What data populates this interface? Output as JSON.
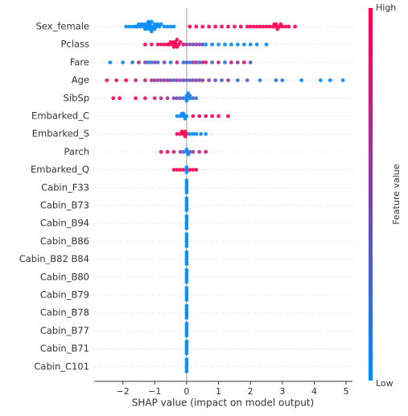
{
  "chart_data": {
    "type": "beeswarm",
    "xlabel": "SHAP value (impact on model output)",
    "xlim": [
      -2.9,
      5.2
    ],
    "xticks": [
      {
        "value": -2,
        "label": "−2"
      },
      {
        "value": -1,
        "label": "−1"
      },
      0,
      1,
      2,
      3,
      4,
      5
    ],
    "colorbar": {
      "label": "Feature value",
      "high": "High",
      "low": "Low",
      "colors": [
        "#008afb",
        "#ff0052"
      ]
    },
    "series": [
      {
        "name": "Sex_female",
        "values": [
          -1.9,
          -1.8,
          -1.7,
          -1.6,
          -1.55,
          -1.5,
          -1.45,
          -1.4,
          -1.35,
          -1.3,
          -1.3,
          -1.25,
          -1.2,
          -1.2,
          -1.2,
          -1.15,
          -1.15,
          -1.1,
          -1.1,
          -1.1,
          -1.05,
          -1.0,
          -1.0,
          -0.95,
          -0.9,
          -0.85,
          -0.8,
          -0.7,
          -0.6,
          -0.5,
          -0.4,
          0.1,
          0.3,
          0.5,
          0.7,
          0.9,
          1.1,
          1.3,
          1.5,
          1.7,
          1.9,
          2.0,
          2.1,
          2.2,
          2.3,
          2.4,
          2.5,
          2.6,
          2.7,
          2.75,
          2.8,
          2.8,
          2.85,
          2.9,
          2.95,
          3.0,
          3.1,
          3.2,
          3.4
        ],
        "feature_values": [
          0,
          0,
          0,
          0,
          0,
          0,
          0,
          0,
          0,
          0,
          0,
          0,
          0,
          0,
          0,
          0,
          0,
          0,
          0,
          0,
          0,
          0,
          0,
          0,
          0,
          0,
          0,
          0,
          0,
          0,
          0,
          1,
          1,
          1,
          1,
          1,
          1,
          1,
          1,
          1,
          1,
          1,
          1,
          1,
          1,
          1,
          1,
          1,
          1,
          1,
          1,
          1,
          1,
          1,
          1,
          1,
          1,
          1,
          1
        ]
      },
      {
        "name": "Pclass",
        "values": [
          -1.3,
          -1.1,
          -0.9,
          -0.8,
          -0.7,
          -0.6,
          -0.55,
          -0.5,
          -0.45,
          -0.4,
          -0.4,
          -0.35,
          -0.35,
          -0.3,
          -0.3,
          -0.25,
          -0.2,
          -0.1,
          0.0,
          0.1,
          0.2,
          0.3,
          0.4,
          0.5,
          0.6,
          0.8,
          1.0,
          1.2,
          1.4,
          1.6,
          1.8,
          2.0,
          2.2,
          2.5
        ],
        "feature_values": [
          1,
          1,
          1,
          1,
          1,
          1,
          1,
          1,
          1,
          1,
          1,
          1,
          1,
          1,
          1,
          1,
          1,
          1,
          0.5,
          0.5,
          0.5,
          0.5,
          0.5,
          0.5,
          0,
          0,
          0,
          0,
          0,
          0,
          0,
          0,
          0,
          0
        ]
      },
      {
        "name": "Fare",
        "values": [
          -2.4,
          -2.0,
          -1.7,
          -1.5,
          -1.3,
          -1.2,
          -1.1,
          -1.0,
          -0.9,
          -0.7,
          -0.5,
          -0.3,
          -0.1,
          0.0,
          0.1,
          0.2,
          0.3,
          0.4,
          0.5,
          0.6,
          0.8,
          1.0,
          1.2,
          1.4,
          1.6,
          1.8,
          2.0
        ],
        "feature_values": [
          0,
          0.1,
          0.2,
          0.7,
          0.5,
          0.3,
          0.1,
          0.6,
          0.2,
          0.4,
          0.1,
          0.8,
          0.2,
          0.3,
          0.1,
          0.5,
          0.7,
          0.2,
          0.6,
          0.9,
          0.3,
          0.7,
          0.2,
          0.8,
          0.6,
          0.9,
          0.4
        ]
      },
      {
        "name": "Age",
        "values": [
          -2.5,
          -2.2,
          -1.9,
          -1.6,
          -1.3,
          -1.1,
          -1.0,
          -0.9,
          -0.8,
          -0.7,
          -0.6,
          -0.5,
          -0.4,
          -0.3,
          -0.2,
          -0.1,
          0,
          0.1,
          0.2,
          0.3,
          0.4,
          0.5,
          0.7,
          0.9,
          1.1,
          1.3,
          1.6,
          1.9,
          2.3,
          2.8,
          3.0,
          3.6,
          4.2,
          4.5,
          4.9
        ],
        "feature_values": [
          0.9,
          0.8,
          1,
          0.7,
          0.8,
          0.6,
          0.7,
          0.5,
          0.6,
          0.4,
          0.7,
          0.5,
          0.3,
          0.6,
          0.4,
          0.5,
          0.3,
          0.4,
          0.5,
          0.6,
          0.3,
          0.7,
          0.5,
          0.4,
          0.3,
          0.6,
          0.2,
          0.3,
          0.1,
          0.2,
          0.1,
          0.05,
          0,
          0.05,
          0
        ]
      },
      {
        "name": "SibSp",
        "values": [
          -2.3,
          -2.1,
          -1.6,
          -1.3,
          -1.0,
          -0.8,
          -0.6,
          -0.4,
          -0.3,
          -0.2,
          -0.1,
          0,
          0,
          0,
          0.05,
          0.1,
          0.1,
          0.2,
          0.3
        ],
        "feature_values": [
          1,
          1,
          1,
          0.9,
          0.8,
          0.7,
          0.6,
          0.5,
          0.4,
          0.4,
          0.3,
          0,
          0,
          0,
          0,
          0,
          0.2,
          0.3,
          0.2
        ]
      },
      {
        "name": "Embarked_C",
        "values": [
          -0.3,
          -0.2,
          -0.15,
          -0.1,
          -0.1,
          -0.05,
          0,
          0.2,
          0.4,
          0.6,
          0.8,
          1.0,
          1.3
        ],
        "feature_values": [
          0,
          0,
          0,
          0,
          0,
          0,
          0,
          1,
          1,
          1,
          1,
          1,
          1
        ]
      },
      {
        "name": "Embarked_S",
        "values": [
          -0.3,
          -0.2,
          -0.15,
          -0.1,
          -0.05,
          -0.05,
          0,
          0.1,
          0.2,
          0.3,
          0.45,
          0.6
        ],
        "feature_values": [
          1,
          1,
          1,
          1,
          1,
          1,
          1,
          0,
          0,
          0,
          0,
          0
        ]
      },
      {
        "name": "Parch",
        "values": [
          -0.8,
          -0.6,
          -0.4,
          -0.2,
          -0.1,
          0,
          0,
          0.05,
          0.1,
          0.2,
          0.4,
          0.6
        ],
        "feature_values": [
          1,
          1,
          0.8,
          0.5,
          0.3,
          0,
          0,
          0,
          0.3,
          0.6,
          0.7,
          0.8
        ]
      },
      {
        "name": "Embarked_Q",
        "values": [
          -0.4,
          -0.3,
          -0.2,
          -0.1,
          0,
          0,
          0,
          0.1,
          0.2,
          0.3
        ],
        "feature_values": [
          1,
          1,
          1,
          1,
          0,
          0,
          0,
          1,
          1,
          1
        ]
      },
      {
        "name": "Cabin_F33",
        "values": [
          0,
          0,
          0,
          0,
          0,
          0
        ],
        "feature_values": [
          0,
          0,
          0,
          0,
          0,
          0
        ]
      },
      {
        "name": "Cabin_B73",
        "values": [
          0,
          0,
          0,
          0,
          0,
          0
        ],
        "feature_values": [
          0,
          0,
          0,
          0,
          0,
          0
        ]
      },
      {
        "name": "Cabin_B94",
        "values": [
          0,
          0,
          0,
          0,
          0,
          0
        ],
        "feature_values": [
          0,
          0,
          0,
          0,
          0,
          0
        ]
      },
      {
        "name": "Cabin_B86",
        "values": [
          0,
          0,
          0,
          0,
          0,
          0
        ],
        "feature_values": [
          0,
          0,
          0,
          0,
          0,
          0
        ]
      },
      {
        "name": "Cabin_B82 B84",
        "values": [
          0,
          0,
          0,
          0,
          0,
          0
        ],
        "feature_values": [
          0,
          0,
          0,
          0,
          0,
          0
        ]
      },
      {
        "name": "Cabin_B80",
        "values": [
          0,
          0,
          0,
          0,
          0,
          0
        ],
        "feature_values": [
          0,
          0,
          0,
          0,
          0,
          0
        ]
      },
      {
        "name": "Cabin_B79",
        "values": [
          0,
          0,
          0,
          0,
          0,
          0
        ],
        "feature_values": [
          0,
          0,
          0,
          0,
          0,
          0
        ]
      },
      {
        "name": "Cabin_B78",
        "values": [
          0,
          0,
          0,
          0,
          0,
          0
        ],
        "feature_values": [
          0,
          0,
          0,
          0,
          0,
          0
        ]
      },
      {
        "name": "Cabin_B77",
        "values": [
          0,
          0,
          0,
          0,
          0,
          0
        ],
        "feature_values": [
          0,
          0,
          0,
          0,
          0,
          0
        ]
      },
      {
        "name": "Cabin_B71",
        "values": [
          0,
          0,
          0,
          0,
          0,
          0
        ],
        "feature_values": [
          0,
          0,
          0,
          0,
          0,
          0
        ]
      },
      {
        "name": "Cabin_C101",
        "values": [
          0,
          0,
          0,
          0,
          0,
          0
        ],
        "feature_values": [
          0,
          0,
          0,
          0,
          0,
          0
        ]
      }
    ]
  }
}
